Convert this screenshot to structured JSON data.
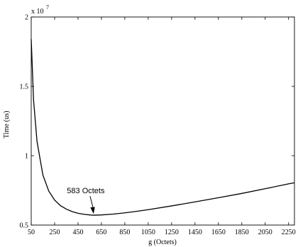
{
  "chart_data": {
    "type": "line",
    "xlabel": "g (Octets)",
    "ylabel": "Time (us)",
    "y_multiplier": "x 10",
    "y_multiplier_exponent": "7",
    "xlim": [
      50,
      2300
    ],
    "ylim": [
      0.5,
      2.0
    ],
    "grid": false,
    "x_ticks": [
      50,
      250,
      450,
      650,
      850,
      1050,
      1250,
      1450,
      1650,
      1850,
      2050,
      2250
    ],
    "x_tick_labels": [
      "50",
      "250",
      "450",
      "650",
      "850",
      "1050",
      "1250",
      "1450",
      "1650",
      "1850",
      "2050",
      "2250"
    ],
    "y_ticks": [
      0.5,
      1.0,
      1.5,
      2.0
    ],
    "y_tick_labels": [
      "0.5",
      "1",
      "1.5",
      "2"
    ],
    "series": [
      {
        "x": [
          50,
          70,
          100,
          150,
          200,
          250,
          300,
          350,
          400,
          450,
          500,
          550,
          583,
          650,
          750,
          850,
          950,
          1050,
          1250,
          1450,
          1650,
          1850,
          2050,
          2250,
          2300
        ],
        "y": [
          1.84,
          1.4,
          1.1,
          0.86,
          0.745,
          0.68,
          0.64,
          0.615,
          0.597,
          0.585,
          0.578,
          0.573,
          0.571,
          0.573,
          0.579,
          0.588,
          0.599,
          0.611,
          0.638,
          0.667,
          0.697,
          0.728,
          0.762,
          0.797,
          0.805
        ]
      }
    ],
    "annotations": [
      {
        "text": "583 Octets",
        "x": 583,
        "y": 0.571
      }
    ]
  }
}
